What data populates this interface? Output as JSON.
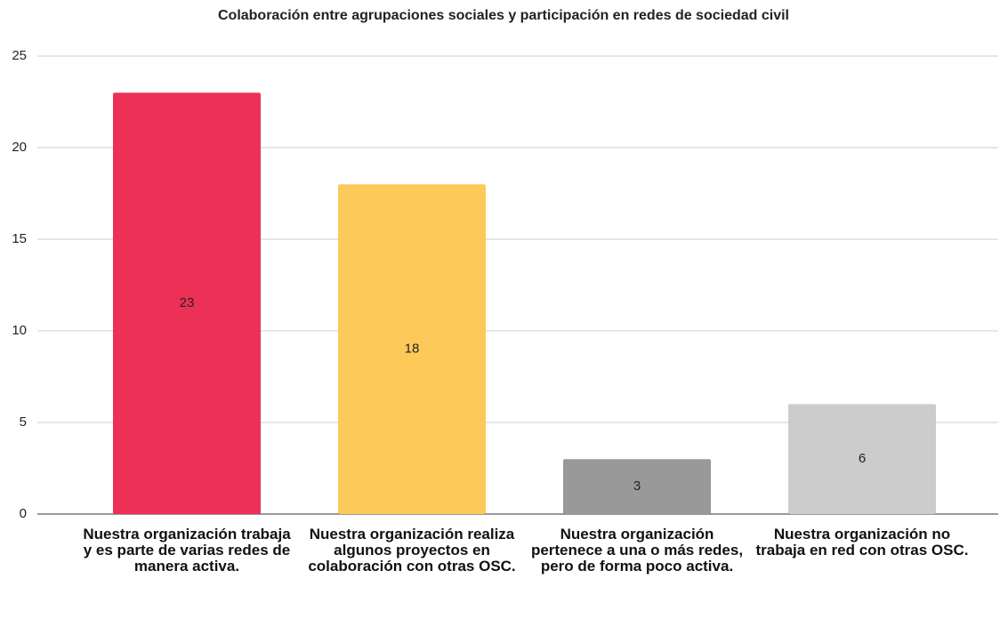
{
  "chart_data": {
    "type": "bar",
    "title": "Colaboración entre agrupaciones sociales y participación en redes de sociedad civil",
    "categories": [
      "Nuestra organización trabaja y es parte de varias redes de manera activa.",
      "Nuestra organización realiza algunos proyectos en colaboración con otras OSC.",
      "Nuestra organización pertenece a una o más redes, pero de forma poco activa.",
      "Nuestra organización no trabaja en red con otras OSC."
    ],
    "values": [
      23,
      18,
      3,
      6
    ],
    "colors": [
      "#ec3056",
      "#fdca5a",
      "#999999",
      "#cccccc"
    ],
    "ylim": [
      0,
      25
    ],
    "yticks": [
      0,
      5,
      10,
      15,
      20,
      25
    ],
    "grid": true,
    "data_labels": true
  }
}
